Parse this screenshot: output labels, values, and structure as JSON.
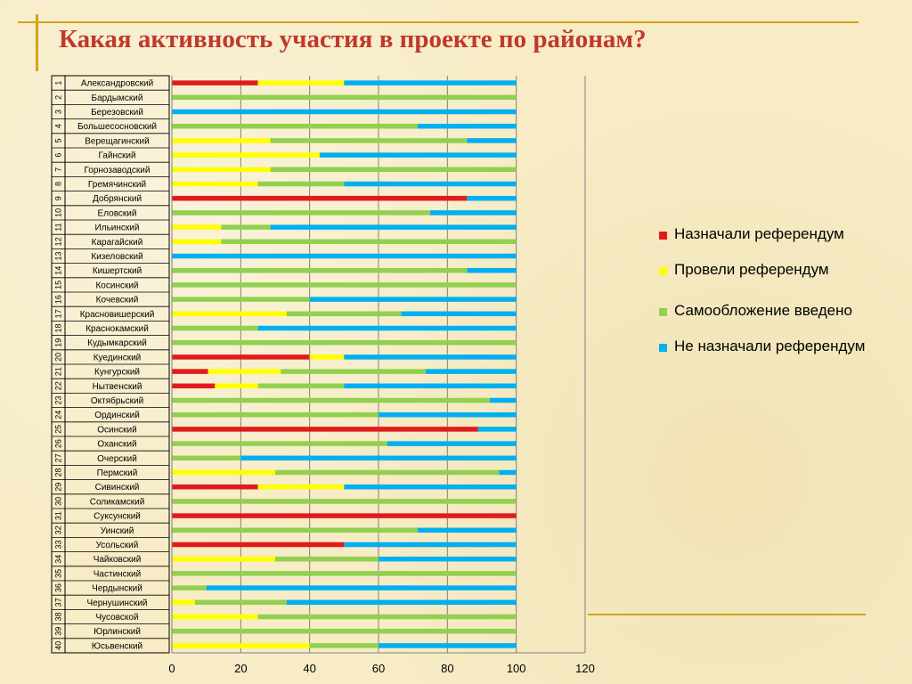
{
  "slide": {
    "title": "Какая активность участия в проекте по районам?"
  },
  "colors": {
    "red": "#e31a1c",
    "yellow": "#ffff00",
    "green": "#92d050",
    "blue": "#00b0f0",
    "accent": "#d4a21a",
    "title": "#c0392b"
  },
  "chart_data": {
    "type": "bar",
    "orientation": "horizontal",
    "stacked": true,
    "title": "",
    "xlabel": "",
    "ylabel": "",
    "xlim": [
      0,
      120
    ],
    "xticks": [
      0,
      20,
      40,
      60,
      80,
      100,
      120
    ],
    "grid": true,
    "legend_position": "right",
    "numbers": [
      "1",
      "2",
      "3",
      "4",
      "5",
      "6",
      "7",
      "8",
      "9",
      "10",
      "11",
      "12",
      "13",
      "14",
      "15",
      "16",
      "17",
      "18",
      "19",
      "20",
      "21",
      "22",
      "23",
      "24",
      "25",
      "26",
      "27",
      "28",
      "29",
      "30",
      "31",
      "32",
      "33",
      "34",
      "35",
      "36",
      "37",
      "38",
      "39",
      "40"
    ],
    "categories": [
      "Александровский",
      "Бардымский",
      "Березовский",
      "Большесосновский",
      "Верещагинский",
      "Гайнский",
      "Горнозаводский",
      "Гремячинский",
      "Добрянский",
      "Еловский",
      "Ильинский",
      "Карагайский",
      "Кизеловский",
      "Кишертский",
      "Косинский",
      "Кочевский",
      "Красновишерский",
      "Краснокамский",
      "Кудымкарский",
      "Куединский",
      "Кунгурский",
      "Нытвенский",
      "Октябрьский",
      "Ординский",
      "Осинский",
      "Оханский",
      "Очерский",
      "Пермский",
      "Сивинский",
      "Соликамский",
      "Суксунский",
      "Уинский",
      "Усольский",
      "Чайковский",
      "Частинский",
      "Чердынский",
      "Чернушинский",
      "Чусовской",
      "Юрлинский",
      "Юсьвенский"
    ],
    "series": [
      {
        "name": "Назначали референдум",
        "color": "#e31a1c",
        "values": [
          25,
          0,
          0,
          0,
          0,
          0,
          0,
          0,
          85.7,
          0,
          0,
          0,
          0,
          0,
          0,
          0,
          0,
          0,
          0,
          40,
          10.5,
          12.5,
          0,
          0,
          88.9,
          0,
          0,
          0,
          25,
          0,
          100,
          0,
          50,
          0,
          0,
          0,
          0,
          0,
          0,
          0
        ]
      },
      {
        "name": "Провели референдум",
        "color": "#ffff00",
        "values": [
          25,
          0,
          0,
          0,
          28.6,
          42.9,
          28.6,
          25,
          0,
          0,
          14.3,
          14.3,
          0,
          0,
          0,
          0,
          33.3,
          0,
          0,
          10,
          21.1,
          12.5,
          0,
          0,
          0,
          0,
          0,
          30,
          25,
          0,
          0,
          0,
          0,
          30,
          0,
          0,
          6.7,
          25,
          0,
          40
        ]
      },
      {
        "name": "Самообложение введено",
        "color": "#92d050",
        "values": [
          0,
          100,
          0,
          71.4,
          57.1,
          0,
          71.4,
          25,
          0,
          75,
          14.3,
          85.7,
          0,
          85.7,
          100,
          40,
          33.3,
          25,
          100,
          0,
          42.1,
          25,
          92.3,
          60,
          0,
          62.5,
          20,
          65,
          0,
          100,
          0,
          71.4,
          0,
          30,
          100,
          10,
          26.6,
          75,
          100,
          20
        ]
      },
      {
        "name": "Не назначали референдум",
        "color": "#00b0f0",
        "values": [
          50,
          0,
          100,
          28.6,
          14.3,
          57.1,
          0,
          50,
          14.3,
          25,
          71.4,
          0,
          100,
          14.3,
          0,
          60,
          33.4,
          75,
          0,
          50,
          26.3,
          50,
          7.7,
          40,
          11.1,
          37.5,
          80,
          5,
          50,
          0,
          0,
          28.6,
          50,
          40,
          0,
          90,
          66.7,
          0,
          0,
          40
        ]
      }
    ]
  }
}
